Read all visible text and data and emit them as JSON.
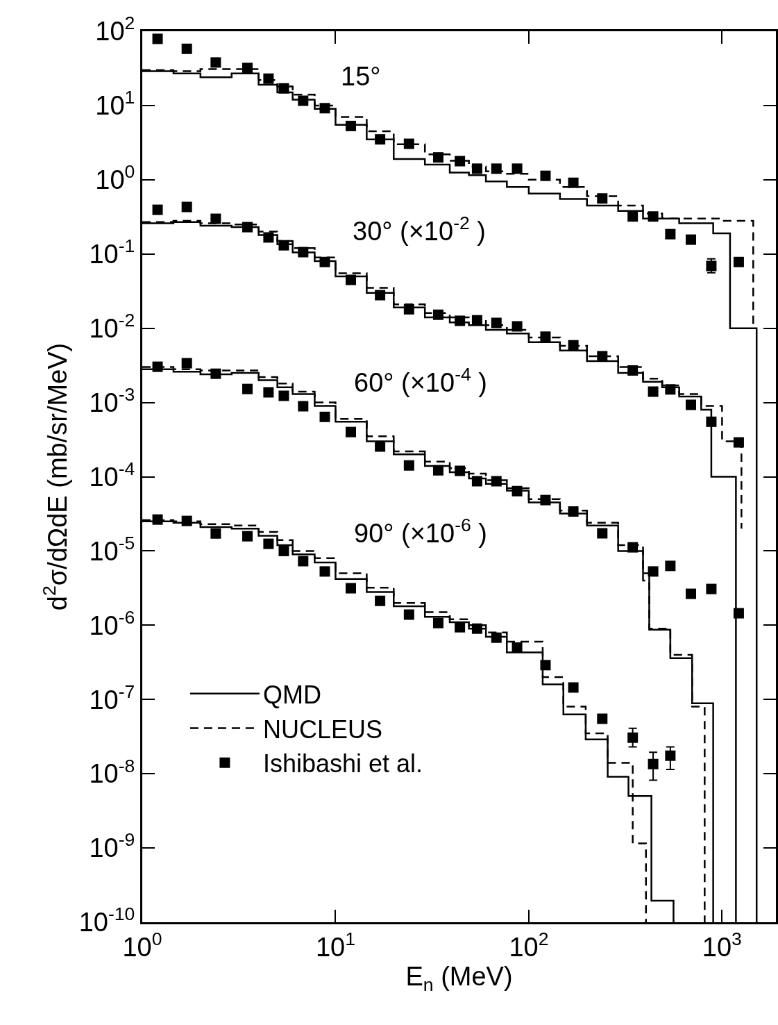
{
  "chart_data": {
    "type": "scatter",
    "xlabel": "E$_{n}$ (MeV)",
    "ylabel": "d$^{2}$σ/dΩdE (mb/sr/MeV)",
    "log": "xy",
    "grid": false,
    "legend": "bottom left",
    "xlim": [
      1,
      1900
    ],
    "ylim": [
      1e-10,
      100
    ],
    "xticks": [
      {
        "value": 1,
        "label": "10$^{0}$"
      },
      {
        "value": 10,
        "label": "10$^{1}$"
      },
      {
        "value": 100,
        "label": "10$^{2}$"
      },
      {
        "value": 1000,
        "label": "10$^{3}$"
      }
    ],
    "yticks": [
      {
        "value": 100,
        "label": "10$^{2}$"
      },
      {
        "value": 10,
        "label": "10$^{1}$"
      },
      {
        "value": 1,
        "label": "10$^{0}$"
      },
      {
        "value": 0.1,
        "label": "10$^{-1}$"
      },
      {
        "value": 0.01,
        "label": "10$^{-2}$"
      },
      {
        "value": 0.001,
        "label": "10$^{-3}$"
      },
      {
        "value": 0.0001,
        "label": "10$^{-4}$"
      },
      {
        "value": 1e-05,
        "label": "10$^{-5}$"
      },
      {
        "value": 1e-06,
        "label": "10$^{-6}$"
      },
      {
        "value": 1e-07,
        "label": "10$^{-7}$"
      },
      {
        "value": 1e-08,
        "label": "10$^{-8}$"
      },
      {
        "value": 1e-09,
        "label": "10$^{-9}$"
      },
      {
        "value": 1e-10,
        "label": "10$^{-10}$"
      }
    ],
    "annotations": [
      "15°",
      "30° (×10$^{-2}$ )",
      "60° (×10$^{-4}$ )",
      "90° (×10$^{-6}$ )"
    ],
    "series": [
      {
        "name": "QMD",
        "type": "step",
        "line_style": "solid",
        "color": "#000000",
        "x": [
          1,
          1.45,
          2,
          2.9,
          4,
          5,
          6,
          7.8,
          10,
          14.5,
          20,
          29,
          39,
          49,
          60,
          77,
          100,
          145,
          200,
          290,
          390,
          490,
          600,
          780,
          900,
          1100,
          1510
        ],
        "values": [
          29,
          27,
          24,
          27,
          19,
          15,
          12,
          9,
          5.5,
          3.5,
          1.9,
          1.6,
          1.25,
          1.15,
          0.95,
          0.8,
          0.65,
          0.55,
          0.45,
          0.38,
          0.3,
          0.3,
          0.26,
          0.26,
          0.19,
          0.01,
          1e-10
        ]
      },
      {
        "name": "NUCLEUS",
        "type": "step",
        "line_style": "dashed",
        "color": "#000000",
        "x": [
          1,
          1.45,
          2,
          2.9,
          4,
          5,
          6,
          7.8,
          10,
          14.5,
          20,
          29,
          39,
          49,
          60,
          77,
          100,
          145,
          200,
          290,
          390,
          490,
          600,
          780,
          1000,
          1450
        ],
        "values": [
          30,
          29,
          31,
          31,
          22,
          18,
          14,
          10,
          7,
          4.5,
          3,
          2.2,
          1.8,
          1.5,
          1.3,
          1.2,
          1.0,
          0.8,
          0.6,
          0.45,
          0.35,
          0.3,
          0.3,
          0.3,
          0.28,
          0.01
        ]
      },
      {
        "name": "Ishibashi et al.",
        "marker": "square",
        "color": "#000000",
        "x": [
          1.2,
          1.7,
          2.4,
          3.5,
          4.5,
          5.4,
          6.8,
          8.8,
          12,
          17,
          24,
          34,
          44,
          54,
          68,
          87,
          122,
          170,
          240,
          345,
          440,
          540,
          690,
          880,
          1220
        ],
        "values": [
          79,
          58,
          38,
          32,
          23,
          17,
          11.6,
          9.2,
          5.3,
          3.5,
          3.05,
          2.0,
          1.78,
          1.41,
          1.41,
          1.41,
          1.13,
          0.91,
          0.56,
          0.32,
          0.32,
          0.185,
          0.156,
          0.069,
          0.078
        ],
        "errors": [
          null,
          null,
          null,
          null,
          null,
          null,
          null,
          null,
          null,
          null,
          null,
          null,
          null,
          null,
          null,
          null,
          null,
          null,
          null,
          null,
          null,
          null,
          null,
          [
            0.056,
            0.086
          ],
          null
        ]
      },
      {
        "type": "step",
        "line_style": "solid",
        "color": "#000000",
        "x": [
          1,
          1.45,
          2,
          2.9,
          4,
          5,
          6,
          7.8,
          10,
          14.5,
          20,
          29,
          39,
          49,
          60,
          77,
          100,
          145,
          200,
          290,
          390,
          490,
          600,
          780,
          880,
          1180
        ],
        "values": [
          0.26,
          0.27,
          0.24,
          0.23,
          0.18,
          0.135,
          0.105,
          0.08,
          0.05,
          0.03,
          0.019,
          0.014,
          0.012,
          0.011,
          0.0095,
          0.0085,
          0.0065,
          0.005,
          0.0036,
          0.0025,
          0.0019,
          0.0016,
          0.0012,
          0.0008,
          0.0001,
          1e-10
        ]
      },
      {
        "type": "step",
        "line_style": "dashed",
        "color": "#000000",
        "x": [
          1,
          1.45,
          2,
          2.9,
          4,
          5,
          6,
          7.8,
          10,
          14.5,
          20,
          29,
          39,
          49,
          60,
          77,
          100,
          145,
          200,
          290,
          390,
          490,
          600,
          780,
          1000,
          1260
        ],
        "values": [
          0.27,
          0.28,
          0.26,
          0.25,
          0.2,
          0.15,
          0.12,
          0.09,
          0.055,
          0.035,
          0.021,
          0.016,
          0.014,
          0.013,
          0.011,
          0.0095,
          0.0075,
          0.0058,
          0.0042,
          0.003,
          0.0021,
          0.0017,
          0.0013,
          0.0009,
          0.0003,
          2e-05
        ]
      },
      {
        "marker": "square",
        "color": "#000000",
        "x": [
          1.2,
          1.7,
          2.4,
          3.5,
          4.5,
          5.4,
          6.8,
          8.8,
          12,
          17,
          24,
          34,
          44,
          54,
          68,
          87,
          122,
          170,
          240,
          345,
          440,
          540,
          690,
          880,
          1220
        ],
        "values": [
          0.394,
          0.43,
          0.298,
          0.23,
          0.167,
          0.131,
          0.106,
          0.078,
          0.0448,
          0.0279,
          0.018,
          0.0152,
          0.0126,
          0.0128,
          0.0118,
          0.0106,
          0.0077,
          0.0059,
          0.0042,
          0.0027,
          0.0014,
          0.0015,
          0.00093,
          0.00055,
          0.00029
        ]
      },
      {
        "type": "step",
        "line_style": "solid",
        "color": "#000000",
        "x": [
          1,
          1.45,
          2,
          2.9,
          4,
          5,
          6,
          7.8,
          10,
          14.5,
          20,
          29,
          39,
          49,
          60,
          77,
          100,
          145,
          200,
          290,
          390,
          420,
          540,
          700,
          900
        ],
        "values": [
          0.0028,
          0.0026,
          0.0024,
          0.0025,
          0.002,
          0.0016,
          0.0013,
          0.0009,
          0.00055,
          0.0003,
          0.0002,
          0.00014,
          0.000115,
          9.5e-05,
          8e-05,
          6.5e-05,
          4.5e-05,
          3.2e-05,
          2.2e-05,
          1e-05,
          5e-06,
          8.7e-07,
          3.6e-07,
          8.9e-08,
          1e-10
        ]
      },
      {
        "type": "step",
        "line_style": "dashed",
        "color": "#000000",
        "x": [
          1,
          1.45,
          2,
          2.9,
          4,
          5,
          6,
          7.8,
          10,
          14.5,
          20,
          29,
          39,
          49,
          60,
          77,
          100,
          145,
          200,
          290,
          390,
          420,
          540,
          700,
          813
        ],
        "values": [
          0.003,
          0.0028,
          0.0027,
          0.0027,
          0.0022,
          0.0018,
          0.0014,
          0.001,
          0.0006,
          0.00035,
          0.00022,
          0.00016,
          0.00013,
          0.00011,
          9e-05,
          7e-05,
          5e-05,
          3.5e-05,
          2.4e-05,
          1.2e-05,
          4e-06,
          9e-07,
          4e-07,
          8e-08,
          1e-10
        ]
      },
      {
        "marker": "square",
        "color": "#000000",
        "x": [
          1.2,
          1.7,
          2.4,
          3.5,
          4.5,
          5.4,
          6.8,
          8.8,
          12,
          17,
          24,
          34,
          44,
          54,
          68,
          87,
          122,
          170,
          240,
          345,
          440,
          540,
          690,
          880,
          1220
        ],
        "values": [
          0.00303,
          0.00338,
          0.00244,
          0.00152,
          0.00137,
          0.00123,
          0.00089,
          0.00064,
          0.0004,
          0.000255,
          0.000142,
          0.000122,
          0.00012,
          8.7e-05,
          8.7e-05,
          6.4e-05,
          4.85e-05,
          3.4e-05,
          1.73e-05,
          1.12e-05,
          5.3e-06,
          6.3e-06,
          2.65e-06,
          3.08e-06,
          1.45e-06
        ]
      },
      {
        "type": "step",
        "line_style": "solid",
        "color": "#000000",
        "x": [
          1,
          1.45,
          2,
          2.9,
          4,
          5,
          6,
          7.8,
          10,
          14.5,
          20,
          29,
          39,
          49,
          60,
          77,
          118,
          151,
          197,
          256,
          328,
          431,
          561
        ],
        "values": [
          2.5e-05,
          2.4e-05,
          2.1e-05,
          2e-05,
          1.6e-05,
          1.2e-05,
          9e-06,
          7e-06,
          4.2e-06,
          2.8e-06,
          1.8e-06,
          1.3e-06,
          1.1e-06,
          9e-07,
          7e-07,
          4.3e-07,
          1.6e-07,
          6.3e-08,
          2.9e-08,
          9.1e-09,
          5e-09,
          1.95e-10,
          1e-10
        ]
      },
      {
        "type": "step",
        "line_style": "dashed",
        "color": "#000000",
        "x": [
          1,
          1.45,
          2,
          2.9,
          4,
          5,
          6,
          7.8,
          10,
          14.5,
          20,
          29,
          39,
          49,
          60,
          77,
          118,
          151,
          197,
          256,
          345,
          404
        ],
        "values": [
          2.6e-05,
          2.5e-05,
          2.3e-05,
          2.2e-05,
          1.8e-05,
          1.4e-05,
          1e-05,
          8e-06,
          5e-06,
          3.2e-06,
          2e-06,
          1.5e-06,
          1.2e-06,
          1e-06,
          8e-07,
          6e-07,
          2e-07,
          8e-08,
          3.5e-08,
          1.4e-08,
          1.15e-09,
          1e-10
        ]
      },
      {
        "marker": "square",
        "color": "#000000",
        "x": [
          1.2,
          1.7,
          2.4,
          3.5,
          4.5,
          5.4,
          6.8,
          8.8,
          12,
          17,
          24,
          34,
          44,
          54,
          68,
          87,
          122,
          170,
          240,
          345,
          440,
          540
        ],
        "values": [
          2.65e-05,
          2.54e-05,
          1.72e-05,
          1.58e-05,
          1.25e-05,
          1e-05,
          7.3e-06,
          5.3e-06,
          3.15e-06,
          2.13e-06,
          1.39e-06,
          1.07e-06,
          9.4e-07,
          9e-07,
          6.8e-07,
          5e-07,
          2.9e-07,
          1.45e-07,
          5.5e-08,
          3.06e-08,
          1.35e-08,
          1.75e-08
        ],
        "errors": [
          null,
          null,
          null,
          null,
          null,
          null,
          null,
          null,
          null,
          null,
          null,
          null,
          null,
          null,
          null,
          null,
          null,
          null,
          null,
          [
            2.3e-08,
            4.1e-08
          ],
          [
            8.2e-09,
            1.95e-08
          ],
          [
            1.14e-08,
            2.3e-08
          ]
        ]
      }
    ]
  }
}
